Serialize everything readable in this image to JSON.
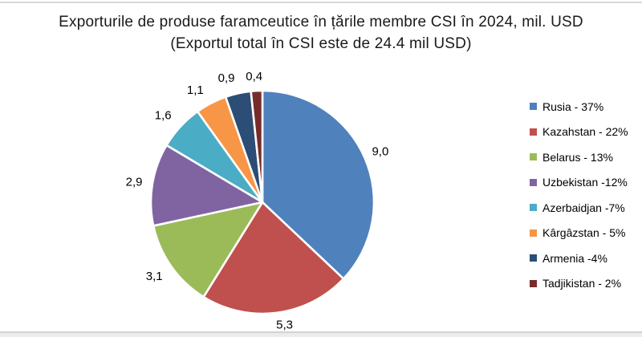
{
  "chart_data": {
    "type": "pie",
    "title": "Exporturile de produse faramceutice în țările membre CSI în 2024, mil. USD",
    "subtitle": "(Exportul total în CSI este de 24.4 mil USD)",
    "total_mil_usd": 24.4,
    "units": "mil. USD",
    "legend_position": "right",
    "slices": [
      {
        "id": "rusia",
        "name": "Rusia",
        "value": 9.0,
        "percent": 37,
        "label": "9,0",
        "legend": "Rusia - 37%",
        "color": "#4F81BD"
      },
      {
        "id": "kazahstan",
        "name": "Kazahstan",
        "value": 5.3,
        "percent": 22,
        "label": "5,3",
        "legend": "Kazahstan - 22%",
        "color": "#C0504D"
      },
      {
        "id": "belarus",
        "name": "Belarus",
        "value": 3.1,
        "percent": 13,
        "label": "3,1",
        "legend": "Belarus - 13%",
        "color": "#9BBB59"
      },
      {
        "id": "uzbekistan",
        "name": "Uzbekistan",
        "value": 2.9,
        "percent": 12,
        "label": "2,9",
        "legend": "Uzbekistan -12%",
        "color": "#8064A2"
      },
      {
        "id": "azerbaidjan",
        "name": "Azerbaidjan",
        "value": 1.6,
        "percent": 7,
        "label": "1,6",
        "legend": "Azerbaidjan -7%",
        "color": "#4BACC6"
      },
      {
        "id": "kargazstan",
        "name": "Kârgâzstan",
        "value": 1.1,
        "percent": 5,
        "label": "1,1",
        "legend": "Kârgâzstan - 5%",
        "color": "#F79646"
      },
      {
        "id": "armenia",
        "name": "Armenia",
        "value": 0.9,
        "percent": 4,
        "label": "0,9",
        "legend": "Armenia -4%",
        "color": "#2C4D75"
      },
      {
        "id": "tadjikistan",
        "name": "Tadjikistan",
        "value": 0.4,
        "percent": 2,
        "label": "0,4",
        "legend": "Tadjikistan - 2%",
        "color": "#772C2A"
      }
    ]
  }
}
